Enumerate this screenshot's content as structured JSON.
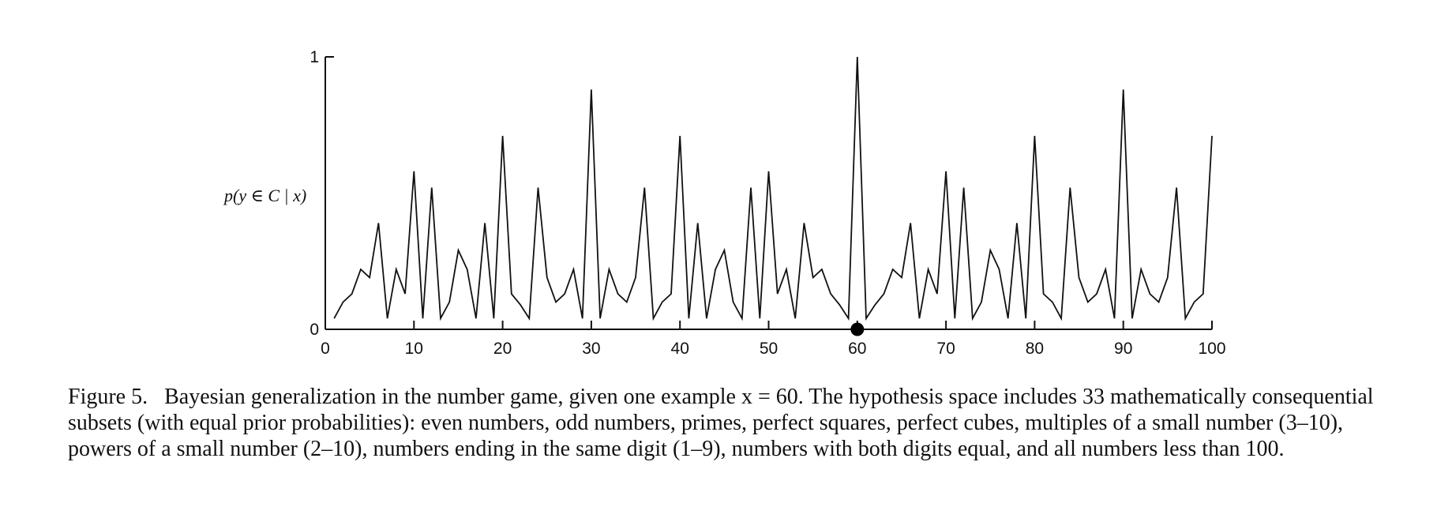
{
  "chart_data": {
    "type": "line",
    "ylabel": "p(y ∈ C | x)",
    "xlabel": "",
    "xlim": [
      0,
      100
    ],
    "ylim": [
      0,
      1
    ],
    "x_ticks": [
      0,
      10,
      20,
      30,
      40,
      50,
      60,
      70,
      80,
      90,
      100
    ],
    "y_ticks": [
      0,
      1
    ],
    "grid": false,
    "example": {
      "x": 60,
      "y": 0
    },
    "x": [
      1,
      2,
      3,
      4,
      5,
      6,
      7,
      8,
      9,
      10,
      11,
      12,
      13,
      14,
      15,
      16,
      17,
      18,
      19,
      20,
      21,
      22,
      23,
      24,
      25,
      26,
      27,
      28,
      29,
      30,
      31,
      32,
      33,
      34,
      35,
      36,
      37,
      38,
      39,
      40,
      41,
      42,
      43,
      44,
      45,
      46,
      47,
      48,
      49,
      50,
      51,
      52,
      53,
      54,
      55,
      56,
      57,
      58,
      59,
      60,
      61,
      62,
      63,
      64,
      65,
      66,
      67,
      68,
      69,
      70,
      71,
      72,
      73,
      74,
      75,
      76,
      77,
      78,
      79,
      80,
      81,
      82,
      83,
      84,
      85,
      86,
      87,
      88,
      89,
      90,
      91,
      92,
      93,
      94,
      95,
      96,
      97,
      98,
      99,
      100
    ],
    "values": [
      0.04,
      0.1,
      0.13,
      0.22,
      0.19,
      0.39,
      0.04,
      0.22,
      0.13,
      0.58,
      0.04,
      0.52,
      0.04,
      0.1,
      0.29,
      0.22,
      0.04,
      0.39,
      0.04,
      0.71,
      0.13,
      0.09,
      0.04,
      0.52,
      0.19,
      0.1,
      0.13,
      0.22,
      0.04,
      0.88,
      0.04,
      0.22,
      0.13,
      0.1,
      0.19,
      0.52,
      0.04,
      0.1,
      0.13,
      0.71,
      0.04,
      0.39,
      0.04,
      0.22,
      0.29,
      0.1,
      0.04,
      0.52,
      0.04,
      0.58,
      0.13,
      0.22,
      0.04,
      0.39,
      0.19,
      0.22,
      0.13,
      0.09,
      0.04,
      1.0,
      0.04,
      0.09,
      0.13,
      0.22,
      0.19,
      0.39,
      0.04,
      0.22,
      0.13,
      0.58,
      0.04,
      0.52,
      0.04,
      0.1,
      0.29,
      0.22,
      0.04,
      0.39,
      0.04,
      0.71,
      0.13,
      0.1,
      0.04,
      0.52,
      0.19,
      0.1,
      0.13,
      0.22,
      0.04,
      0.88,
      0.04,
      0.22,
      0.13,
      0.1,
      0.19,
      0.52,
      0.04,
      0.1,
      0.13,
      0.71
    ]
  },
  "caption": {
    "figure_number": "Figure 5.",
    "text": "Bayesian generalization in the number game, given one example x = 60. The hypothesis space includes 33 mathematically consequential subsets (with equal prior probabilities): even numbers, odd numbers, primes, perfect squares, perfect cubes, multiples of a small number (3–10), powers of a small number (2–10), numbers ending in the same digit (1–9), numbers with both digits equal, and all numbers less than 100."
  }
}
